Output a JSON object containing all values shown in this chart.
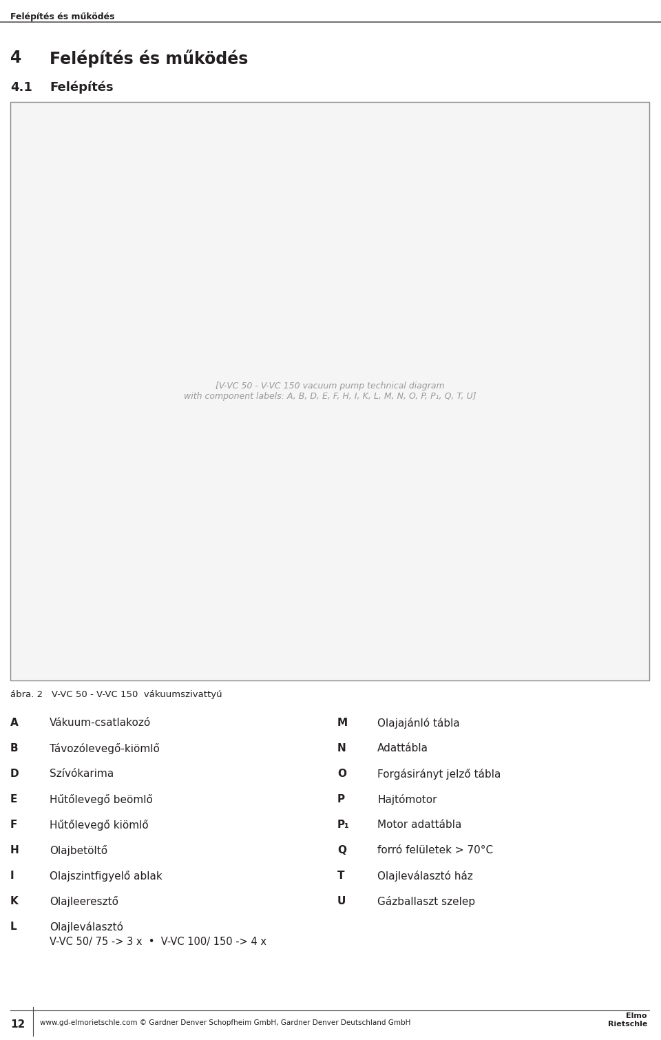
{
  "header_text": "Felépítés és működés",
  "chapter_num": "4",
  "chapter_title": "Felépítés és működés",
  "section_num": "4.1",
  "section_title": "Felépítés",
  "figure_caption": "ábra. 2   V-VC 50 - V-VC 150  vákuumszivattyú",
  "left_items": [
    [
      "A",
      "Vákuum-csatlakozó"
    ],
    [
      "B",
      "Távozólevegő-kiömlő"
    ],
    [
      "D",
      "Szívókarima"
    ],
    [
      "E",
      "Hűtőlevegő beömlő"
    ],
    [
      "F",
      "Hűtőlevegő kiömlő"
    ],
    [
      "H",
      "Olajbetöltő"
    ],
    [
      "I",
      "Olajszintfigyelő ablak"
    ],
    [
      "K",
      "Olajleeresztő"
    ],
    [
      "L",
      "Olajleválasztó"
    ]
  ],
  "L_subtext": "V-VC 50/ 75 -> 3 x  •  V-VC 100/ 150 -> 4 x",
  "right_items": [
    [
      "M",
      "Olajajánló tábla"
    ],
    [
      "N",
      "Adattábla"
    ],
    [
      "O",
      "Forgásirányt jelző tábla"
    ],
    [
      "P",
      "Hajtómotor"
    ],
    [
      "P₁",
      "Motor adattábla"
    ],
    [
      "Q",
      "forró felületek > 70°C"
    ],
    [
      "T",
      "Olajleválasztó ház"
    ],
    [
      "U",
      "Gázballaszt szelep"
    ]
  ],
  "footer_page": "12",
  "footer_text": "www.gd-elmorietschle.com © Gardner Denver Schopfheim GmbH, Gardner Denver Deutschland GmbH",
  "bg_color": "#ffffff",
  "text_color": "#231f20",
  "header_line_color": "#555555",
  "box_edge_color": "#888888",
  "box_face_color": "#f5f5f5"
}
